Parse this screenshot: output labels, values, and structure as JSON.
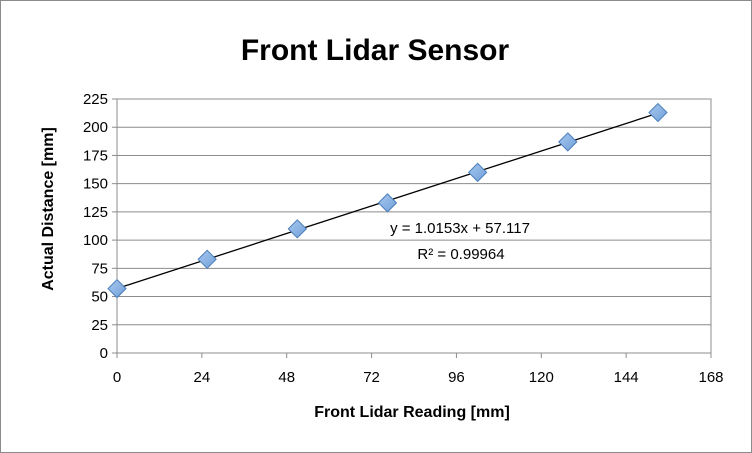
{
  "chart_data": {
    "type": "scatter",
    "title": "Front Lidar Sensor",
    "xlabel": "Front Lidar Reading [mm]",
    "ylabel": "Actual Distance [mm]",
    "xlim": [
      0,
      168
    ],
    "ylim": [
      0,
      225
    ],
    "xticks": [
      0,
      24,
      48,
      72,
      96,
      120,
      144,
      168
    ],
    "yticks": [
      0,
      25,
      50,
      75,
      100,
      125,
      150,
      175,
      200,
      225
    ],
    "grid": true,
    "legend": "none",
    "series": [
      {
        "x": [
          0,
          25.5,
          51,
          76.5,
          102,
          127.5,
          153
        ],
        "y": [
          57,
          83,
          110,
          133,
          160,
          187,
          213
        ],
        "marker": "diamond",
        "color": "#6f9fd8"
      }
    ],
    "trendline": {
      "type": "linear",
      "slope": 1.0153,
      "intercept": 57.117,
      "x_range": [
        0,
        153
      ],
      "equation": "y = 1.0153x + 57.117",
      "r_squared": "R² = 0.99964"
    }
  }
}
